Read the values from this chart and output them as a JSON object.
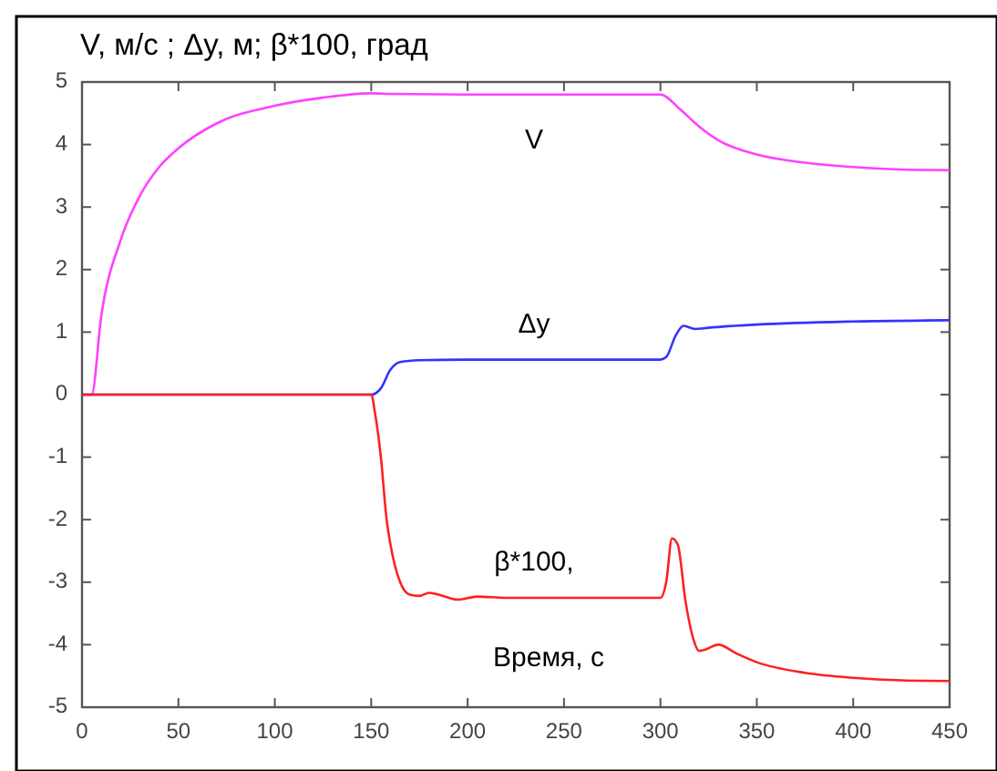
{
  "chart_data": {
    "type": "line",
    "title": "V, м/с ; Δy, м; β*100,  град",
    "xlabel": "Время, с",
    "xlim": [
      0,
      450
    ],
    "ylim": [
      -5,
      5
    ],
    "xticks": [
      0,
      50,
      100,
      150,
      200,
      250,
      300,
      350,
      400,
      450
    ],
    "yticks": [
      -5,
      -4,
      -3,
      -2,
      -1,
      0,
      1,
      2,
      3,
      4,
      5
    ],
    "grid": false,
    "marker": "none",
    "line_style": "solid",
    "series": [
      {
        "name": "V",
        "color": "#ff40ff",
        "x": [
          0,
          5,
          10,
          20,
          30,
          40,
          50,
          70,
          100,
          125,
          150,
          160,
          200,
          250,
          300,
          310,
          320,
          330,
          350,
          375,
          400,
          425,
          450
        ],
        "values": [
          0,
          0,
          1.26,
          2.47,
          3.18,
          3.64,
          3.94,
          4.34,
          4.62,
          4.75,
          4.82,
          4.81,
          4.8,
          4.8,
          4.8,
          4.57,
          4.29,
          4.07,
          3.84,
          3.71,
          3.64,
          3.6,
          3.59
        ]
      },
      {
        "name": "Δy",
        "color": "#3333ff",
        "x": [
          0,
          150,
          155,
          160,
          165,
          175,
          200,
          250,
          300,
          303,
          308,
          312,
          318,
          325,
          350,
          400,
          450
        ],
        "values": [
          0,
          0,
          0.1,
          0.4,
          0.52,
          0.55,
          0.56,
          0.56,
          0.56,
          0.6,
          0.95,
          1.1,
          1.05,
          1.07,
          1.12,
          1.17,
          1.19
        ]
      },
      {
        "name": "β*100,",
        "color": "#ff2020",
        "x": [
          0,
          150,
          152,
          155,
          158,
          160,
          165,
          170,
          175,
          180,
          185,
          195,
          205,
          220,
          250,
          300,
          303,
          306,
          309,
          313,
          317,
          320,
          323,
          330,
          340,
          350,
          375,
          400,
          425,
          450
        ],
        "values": [
          0,
          0,
          -0.3,
          -1.0,
          -2.0,
          -2.4,
          -3.0,
          -3.2,
          -3.22,
          -3.17,
          -3.2,
          -3.28,
          -3.23,
          -3.25,
          -3.25,
          -3.25,
          -3.0,
          -2.3,
          -2.4,
          -3.3,
          -3.9,
          -4.1,
          -4.08,
          -4.0,
          -4.15,
          -4.28,
          -4.45,
          -4.53,
          -4.57,
          -4.58
        ]
      }
    ]
  }
}
